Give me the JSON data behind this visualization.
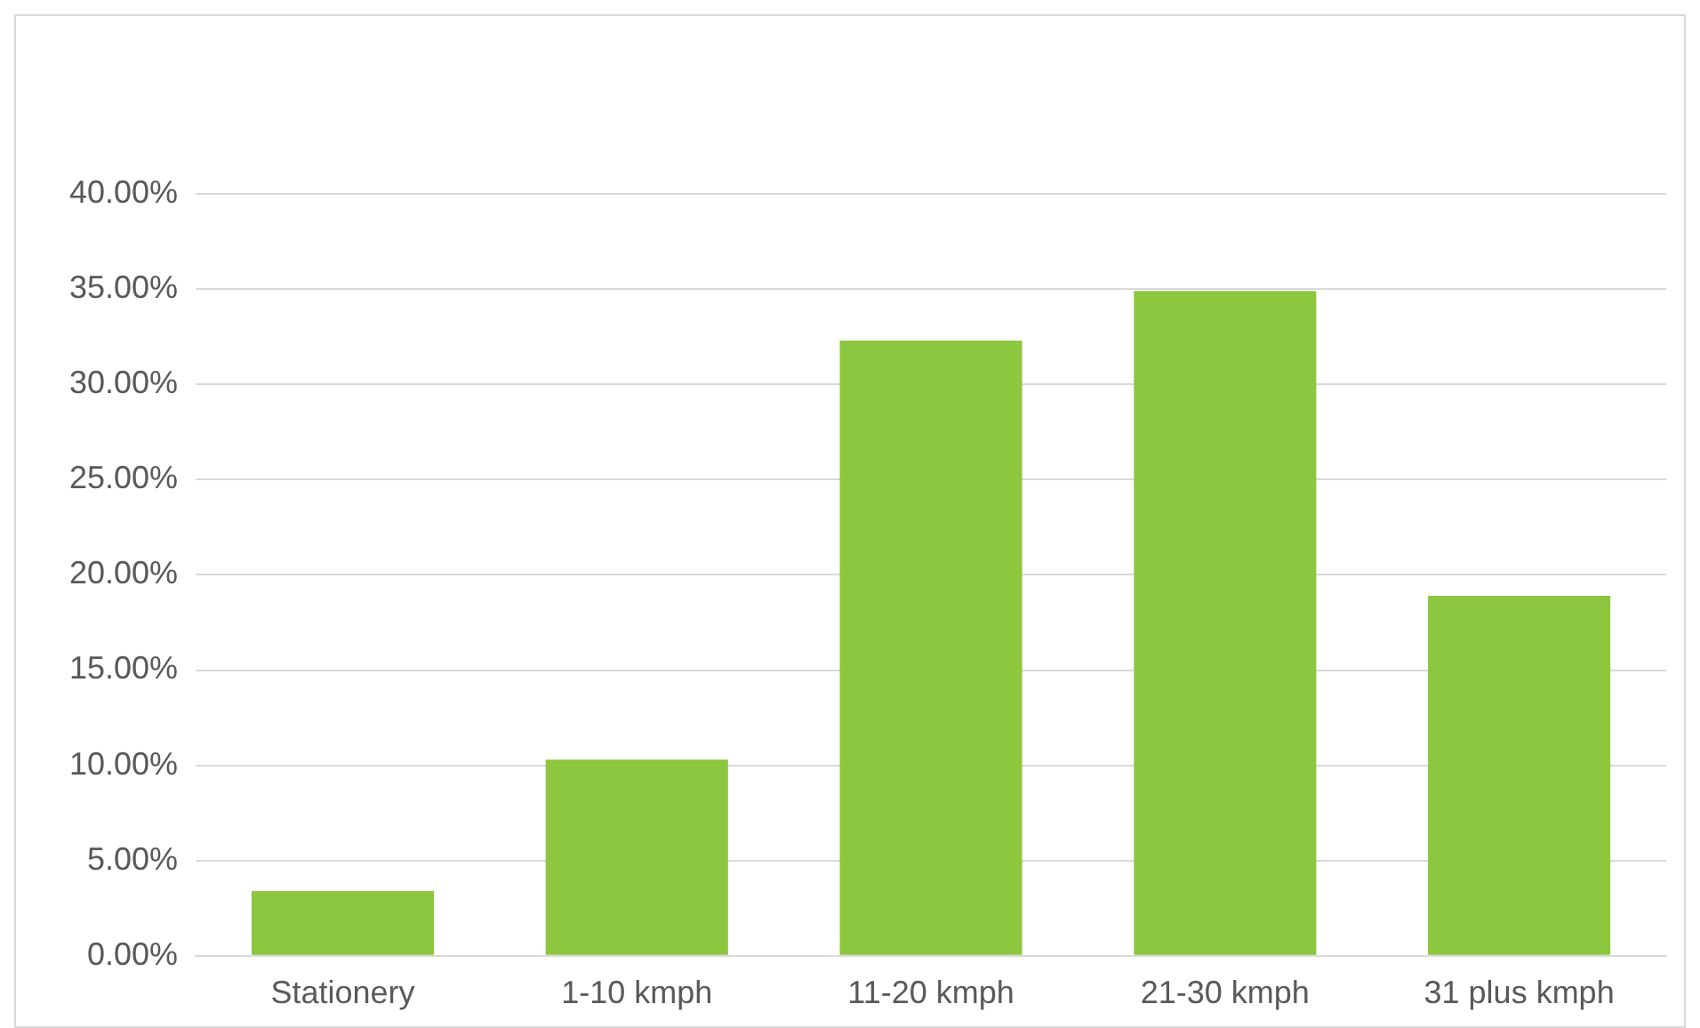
{
  "chart_data": {
    "type": "bar",
    "categories": [
      "Stationery",
      "1-10 kmph",
      "11-20 kmph",
      "21-30 kmph",
      "31 plus kmph"
    ],
    "values": [
      3.4,
      10.3,
      32.3,
      34.9,
      18.9
    ],
    "color": "#8dc63f",
    "ylim": [
      0,
      40
    ],
    "yticks": [
      {
        "value": 0,
        "label": "0.00%"
      },
      {
        "value": 5,
        "label": "5.00%"
      },
      {
        "value": 10,
        "label": "10.00%"
      },
      {
        "value": 15,
        "label": "15.00%"
      },
      {
        "value": 20,
        "label": "20.00%"
      },
      {
        "value": 25,
        "label": "25.00%"
      },
      {
        "value": 30,
        "label": "30.00%"
      },
      {
        "value": 35,
        "label": "35.00%"
      },
      {
        "value": 40,
        "label": "40.00%"
      }
    ],
    "grid": "y"
  }
}
